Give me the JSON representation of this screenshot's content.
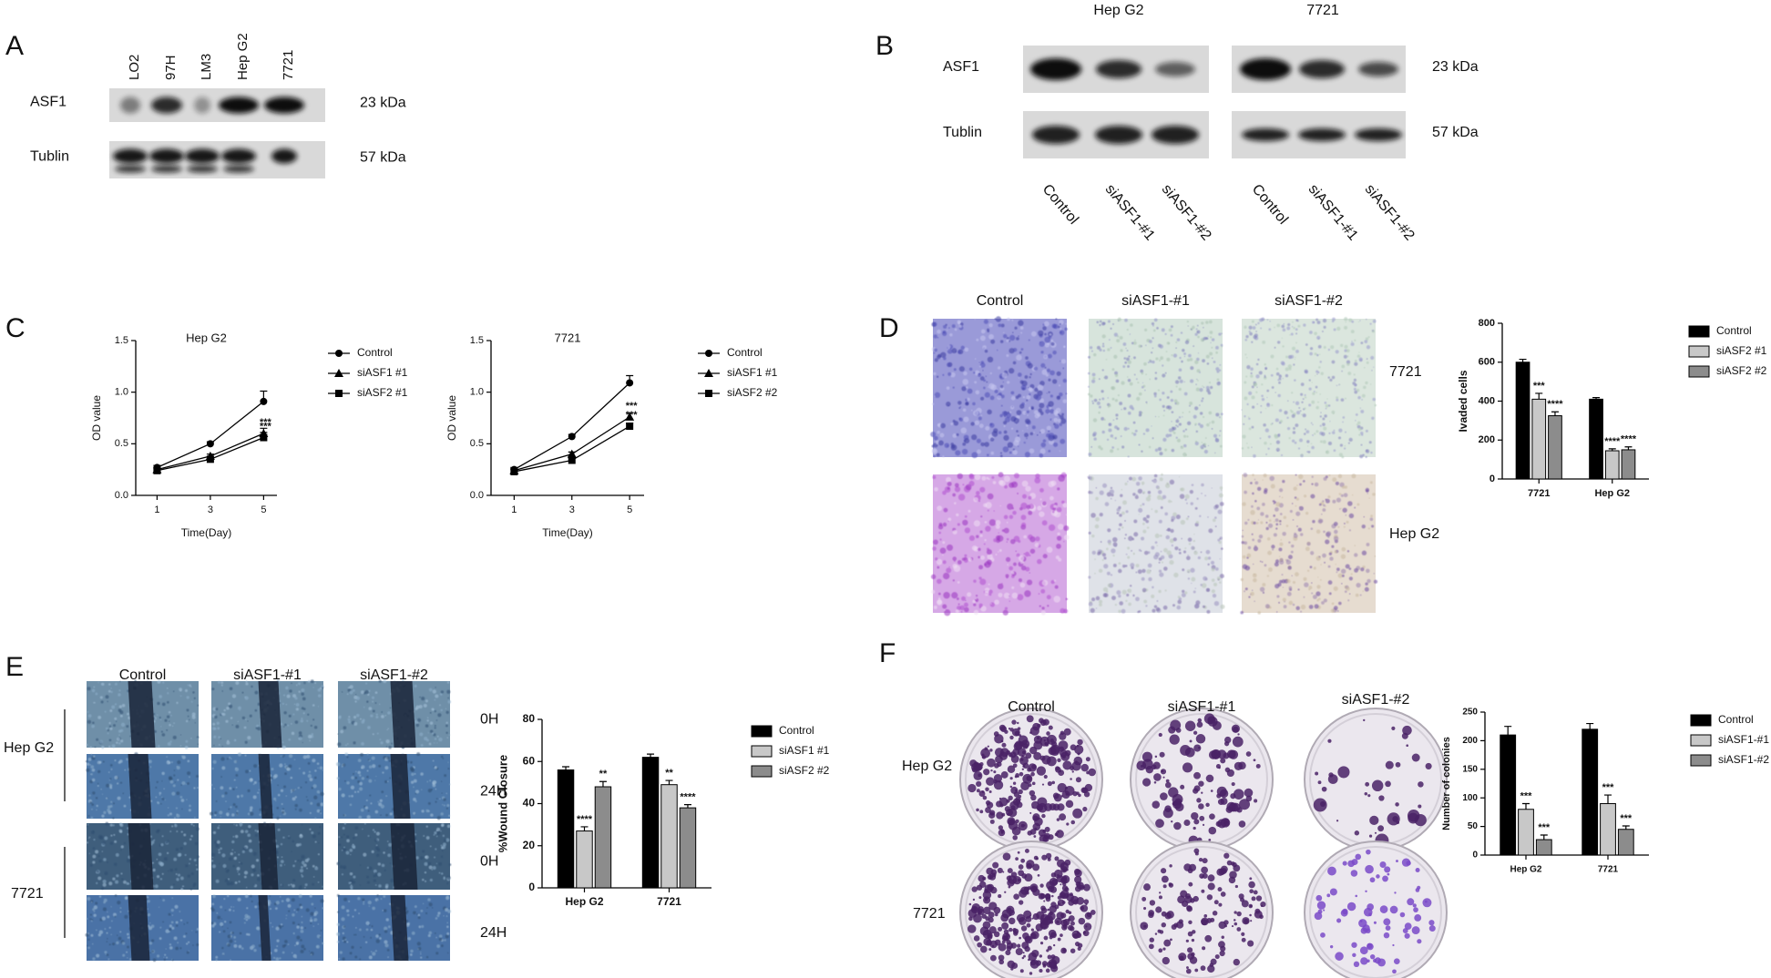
{
  "panel_labels": [
    "A",
    "B",
    "C",
    "D",
    "E",
    "F"
  ],
  "blot_a": {
    "lanes": [
      "LO2",
      "97H",
      "LM3",
      "Hep G2",
      "7721"
    ],
    "rows": [
      {
        "protein": "ASF1",
        "size": "23 kDa"
      },
      {
        "protein": "Tublin",
        "size": "57 kDa"
      }
    ]
  },
  "blot_b": {
    "groups": [
      "Hep G2",
      "7721"
    ],
    "lanes": [
      "Control",
      "siASF1-#1",
      "siASF1-#2"
    ],
    "rows": [
      {
        "protein": "ASF1",
        "size": "23 kDa"
      },
      {
        "protein": "Tublin",
        "size": "57 kDa"
      }
    ]
  },
  "invasion_d": {
    "columns": [
      "Control",
      "siASF1-#1",
      "siASF1-#2"
    ],
    "rows": [
      "7721",
      "Hep G2"
    ]
  },
  "wound_e": {
    "columns": [
      "Control",
      "siASF1-#1",
      "siASF1-#2"
    ],
    "rows": [
      "Hep G2",
      "7721"
    ],
    "times": [
      "0H",
      "24H",
      "0H",
      "24H"
    ]
  },
  "colony_f": {
    "columns": [
      "Control",
      "siASF1-#1",
      "siASF1-#2"
    ],
    "rows": [
      "Hep G2",
      "7721"
    ]
  },
  "chart_data": [
    {
      "type": "line",
      "title": "Hep G2",
      "x_label": "Time(Day)",
      "y_label": "OD value",
      "x": [
        1,
        3,
        5
      ],
      "xlim": [
        0.2,
        5.5
      ],
      "xticks": [
        1,
        3,
        5
      ],
      "ylim": [
        0,
        1.5
      ],
      "yticks": [
        {
          "value": 0,
          "label": "0.0"
        },
        0.5,
        {
          "value": 1,
          "label": "1.0"
        },
        1.5
      ],
      "series": [
        {
          "name": "Control",
          "color": "#000000",
          "marker": "circle",
          "values": [
            0.27,
            0.5,
            0.91
          ],
          "errors": [
            0.02,
            0.02,
            0.1
          ],
          "stars": [
            null,
            null,
            null
          ]
        },
        {
          "name": "siASF1 #1",
          "color": "#000000",
          "marker": "triangle",
          "values": [
            0.25,
            0.38,
            0.6
          ],
          "errors": [
            0.02,
            0.02,
            0.05
          ],
          "stars": [
            null,
            null,
            "***"
          ]
        },
        {
          "name": "siASF2 #1",
          "color": "#000000",
          "marker": "square",
          "values": [
            0.24,
            0.35,
            0.56
          ],
          "errors": [
            0.02,
            0.02,
            0.05
          ],
          "stars": [
            null,
            null,
            "***"
          ]
        }
      ]
    },
    {
      "type": "line",
      "title": "7721",
      "x_label": "Time(Day)",
      "y_label": "OD value",
      "x": [
        1,
        3,
        5
      ],
      "xlim": [
        0.2,
        5.5
      ],
      "xticks": [
        1,
        3,
        5
      ],
      "ylim": [
        0,
        1.5
      ],
      "yticks": [
        {
          "value": 0,
          "label": "0.0"
        },
        0.5,
        {
          "value": 1,
          "label": "1.0"
        },
        1.5
      ],
      "series": [
        {
          "name": "Control",
          "color": "#000000",
          "marker": "circle",
          "values": [
            0.25,
            0.57,
            1.09
          ],
          "errors": [
            0.02,
            0.02,
            0.07
          ],
          "stars": [
            null,
            null,
            null
          ]
        },
        {
          "name": "siASF1 #1",
          "color": "#000000",
          "marker": "triangle",
          "values": [
            0.24,
            0.4,
            0.76
          ],
          "errors": [
            0.02,
            0.02,
            0.04
          ],
          "stars": [
            null,
            null,
            "***"
          ]
        },
        {
          "name": "siASF2 #2",
          "color": "#000000",
          "marker": "square",
          "values": [
            0.23,
            0.34,
            0.67
          ],
          "errors": [
            0.02,
            0.02,
            0.03
          ],
          "stars": [
            null,
            null,
            "***"
          ]
        }
      ]
    },
    {
      "type": "bar",
      "y_label": "Ivaded cells",
      "categories": [
        "7721",
        "Hep G2"
      ],
      "ylim": [
        0,
        800
      ],
      "yticks": [
        0,
        200,
        400,
        600,
        800
      ],
      "series": [
        {
          "name": "Control",
          "color": "#000000",
          "values": [
            600,
            410
          ],
          "errors": [
            15,
            8
          ],
          "stars": [
            null,
            null
          ]
        },
        {
          "name": "siASF2 #1",
          "color": "#c8c8c8",
          "values": [
            410,
            145
          ],
          "errors": [
            30,
            10
          ],
          "stars": [
            "***",
            "****"
          ]
        },
        {
          "name": "siASF2 #2",
          "color": "#8c8c8c",
          "values": [
            325,
            150
          ],
          "errors": [
            20,
            15
          ],
          "stars": [
            "****",
            "****"
          ]
        }
      ]
    },
    {
      "type": "bar",
      "y_label": "%Wound Closure",
      "categories": [
        "Hep G2",
        "7721"
      ],
      "ylim": [
        0,
        80
      ],
      "yticks": [
        0,
        20,
        40,
        60,
        80
      ],
      "series": [
        {
          "name": "Control",
          "color": "#000000",
          "values": [
            56,
            62
          ],
          "errors": [
            1.5,
            1.5
          ],
          "stars": [
            null,
            null
          ]
        },
        {
          "name": "siASF1 #1",
          "color": "#c8c8c8",
          "values": [
            27,
            49
          ],
          "errors": [
            2,
            2
          ],
          "stars": [
            "****",
            "**"
          ]
        },
        {
          "name": "siASF2 #2",
          "color": "#8c8c8c",
          "values": [
            48,
            38
          ],
          "errors": [
            2.5,
            1.5
          ],
          "stars": [
            "**",
            "****"
          ]
        }
      ]
    },
    {
      "type": "bar",
      "y_label": "Number of colonies",
      "categories": [
        "Hep G2",
        "7721"
      ],
      "ylim": [
        0,
        250
      ],
      "yticks": [
        0,
        50,
        100,
        150,
        200,
        250
      ],
      "series": [
        {
          "name": "Control",
          "color": "#000000",
          "values": [
            210,
            220
          ],
          "errors": [
            15,
            10
          ],
          "stars": [
            null,
            null
          ]
        },
        {
          "name": "siASF1-#1",
          "color": "#c8c8c8",
          "values": [
            80,
            90
          ],
          "errors": [
            10,
            15
          ],
          "stars": [
            "***",
            "***"
          ]
        },
        {
          "name": "siASF1-#2",
          "color": "#8c8c8c",
          "values": [
            27,
            45
          ],
          "errors": [
            8,
            6
          ],
          "stars": [
            "***",
            "***"
          ]
        }
      ]
    }
  ]
}
